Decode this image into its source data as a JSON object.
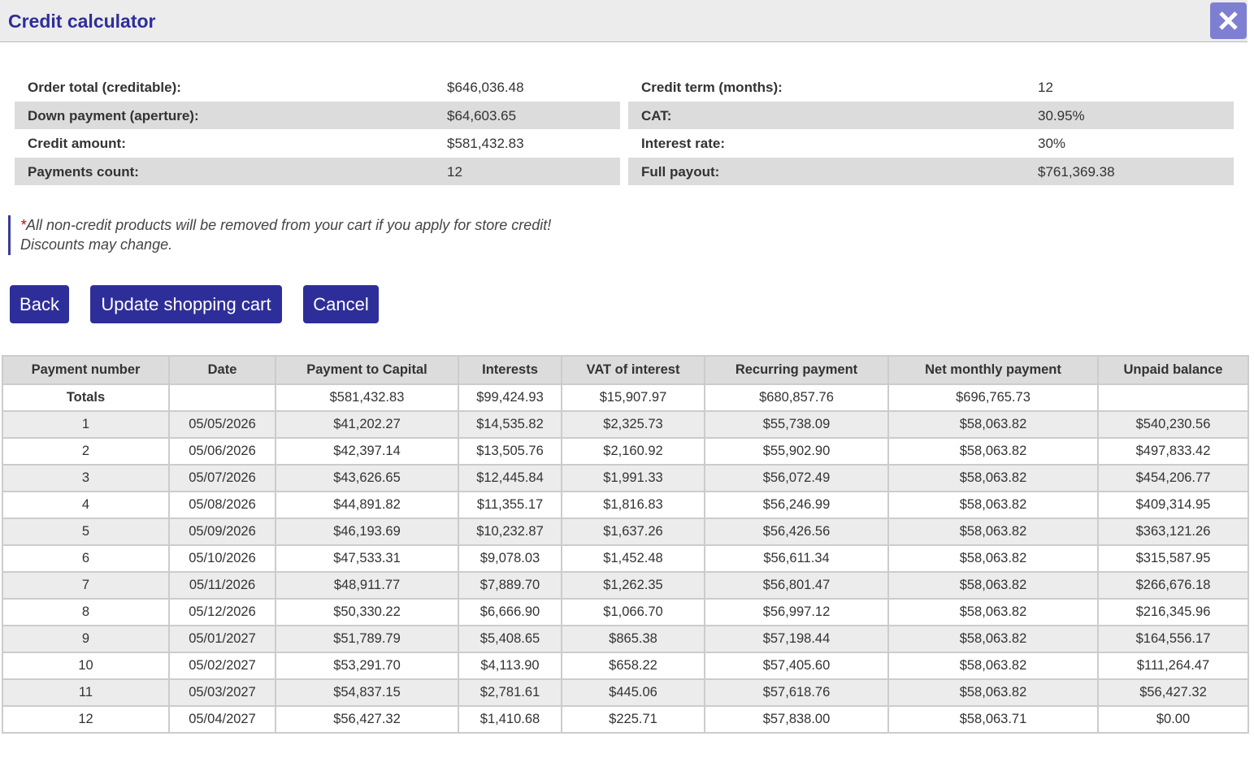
{
  "header": {
    "title": "Credit calculator"
  },
  "summary": {
    "left": [
      {
        "label": "Order total (creditable):",
        "value": "$646,036.48"
      },
      {
        "label": "Down payment (aperture):",
        "value": "$64,603.65"
      },
      {
        "label": "Credit amount:",
        "value": "$581,432.83"
      },
      {
        "label": "Payments count:",
        "value": "12"
      }
    ],
    "right": [
      {
        "label": "Credit term (months):",
        "value": "12"
      },
      {
        "label": "CAT:",
        "value": "30.95%"
      },
      {
        "label": "Interest rate:",
        "value": "30%"
      },
      {
        "label": "Full payout:",
        "value": "$761,369.38"
      }
    ]
  },
  "notice": {
    "asterisk": "*",
    "lines": [
      "All non-credit products will be removed from your cart if you apply for store credit!",
      "Discounts may change."
    ]
  },
  "buttons": [
    "Back",
    "Update shopping cart",
    "Cancel"
  ],
  "table": {
    "columns": [
      "Payment number",
      "Date",
      "Payment to Capital",
      "Interests",
      "VAT of interest",
      "Recurring payment",
      "Net monthly payment",
      "Unpaid balance"
    ],
    "totals": {
      "label": "Totals",
      "payment_to_capital": "$581,432.83",
      "interests": "$99,424.93",
      "vat_of_interest": "$15,907.97",
      "recurring_payment": "$680,857.76",
      "net_monthly_payment": "$696,765.73"
    },
    "rows": [
      [
        "1",
        "05/05/2026",
        "$41,202.27",
        "$14,535.82",
        "$2,325.73",
        "$55,738.09",
        "$58,063.82",
        "$540,230.56"
      ],
      [
        "2",
        "05/06/2026",
        "$42,397.14",
        "$13,505.76",
        "$2,160.92",
        "$55,902.90",
        "$58,063.82",
        "$497,833.42"
      ],
      [
        "3",
        "05/07/2026",
        "$43,626.65",
        "$12,445.84",
        "$1,991.33",
        "$56,072.49",
        "$58,063.82",
        "$454,206.77"
      ],
      [
        "4",
        "05/08/2026",
        "$44,891.82",
        "$11,355.17",
        "$1,816.83",
        "$56,246.99",
        "$58,063.82",
        "$409,314.95"
      ],
      [
        "5",
        "05/09/2026",
        "$46,193.69",
        "$10,232.87",
        "$1,637.26",
        "$56,426.56",
        "$58,063.82",
        "$363,121.26"
      ],
      [
        "6",
        "05/10/2026",
        "$47,533.31",
        "$9,078.03",
        "$1,452.48",
        "$56,611.34",
        "$58,063.82",
        "$315,587.95"
      ],
      [
        "7",
        "05/11/2026",
        "$48,911.77",
        "$7,889.70",
        "$1,262.35",
        "$56,801.47",
        "$58,063.82",
        "$266,676.18"
      ],
      [
        "8",
        "05/12/2026",
        "$50,330.22",
        "$6,666.90",
        "$1,066.70",
        "$56,997.12",
        "$58,063.82",
        "$216,345.96"
      ],
      [
        "9",
        "05/01/2027",
        "$51,789.79",
        "$5,408.65",
        "$865.38",
        "$57,198.44",
        "$58,063.82",
        "$164,556.17"
      ],
      [
        "10",
        "05/02/2027",
        "$53,291.70",
        "$4,113.90",
        "$658.22",
        "$57,405.60",
        "$58,063.82",
        "$111,264.47"
      ],
      [
        "11",
        "05/03/2027",
        "$54,837.15",
        "$2,781.61",
        "$445.06",
        "$57,618.76",
        "$58,063.82",
        "$56,427.32"
      ],
      [
        "12",
        "05/04/2027",
        "$56,427.32",
        "$1,410.68",
        "$225.71",
        "$57,838.00",
        "$58,063.71",
        "$0.00"
      ]
    ]
  }
}
